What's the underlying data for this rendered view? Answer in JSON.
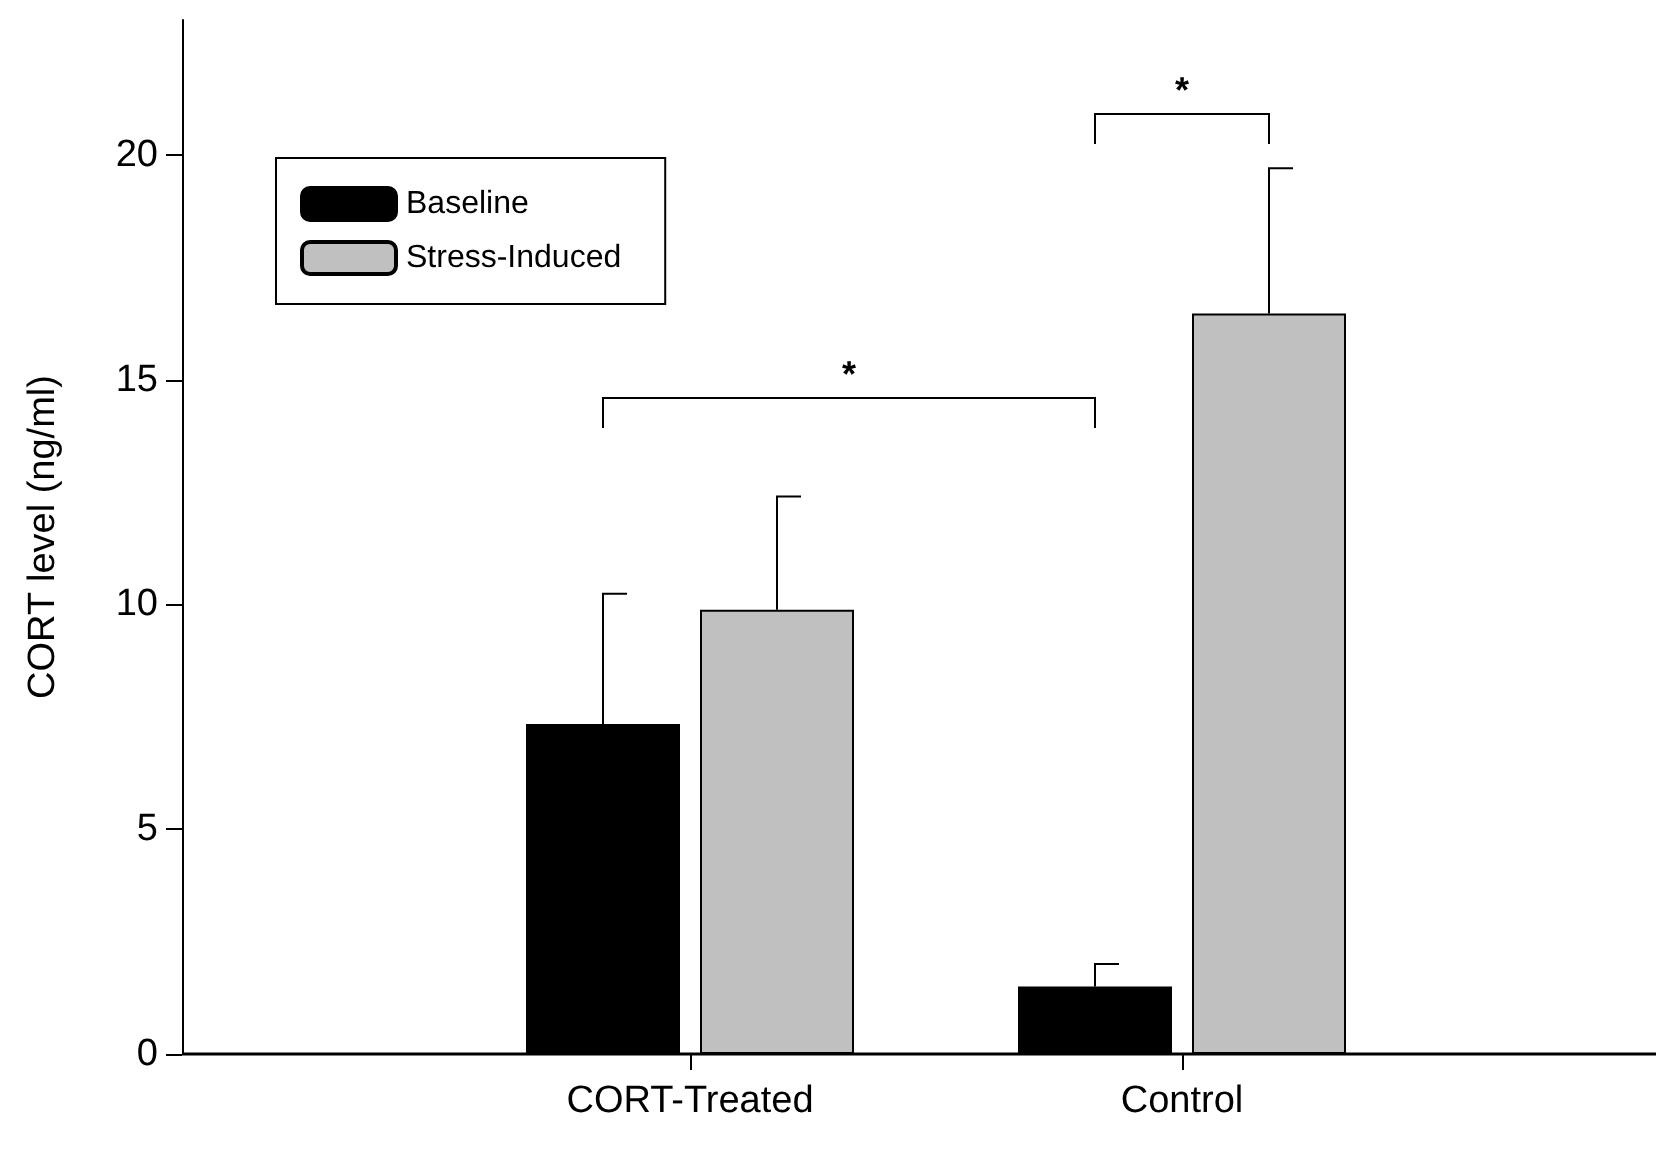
{
  "chart_data": {
    "type": "bar",
    "ylabel": "CORT level (ng/ml)",
    "categories": [
      "CORT-Treated",
      "Control"
    ],
    "series": [
      {
        "name": "Baseline",
        "color": "#000000",
        "values": [
          7.34,
          1.5
        ],
        "errors": [
          [
            7.34,
            10.24
          ],
          [
            1.5,
            2.0
          ]
        ]
      },
      {
        "name": "Stress-Induced",
        "color": "#c0c0c0",
        "values": [
          9.88,
          16.47
        ],
        "errors": [
          [
            9.88,
            12.4
          ],
          [
            16.47,
            19.7
          ]
        ]
      }
    ],
    "ylim": [
      0,
      23
    ],
    "yticks": [
      0,
      5,
      10,
      15,
      20
    ],
    "grid": false,
    "legend": "top left",
    "annotations": [
      "*",
      "*"
    ]
  }
}
